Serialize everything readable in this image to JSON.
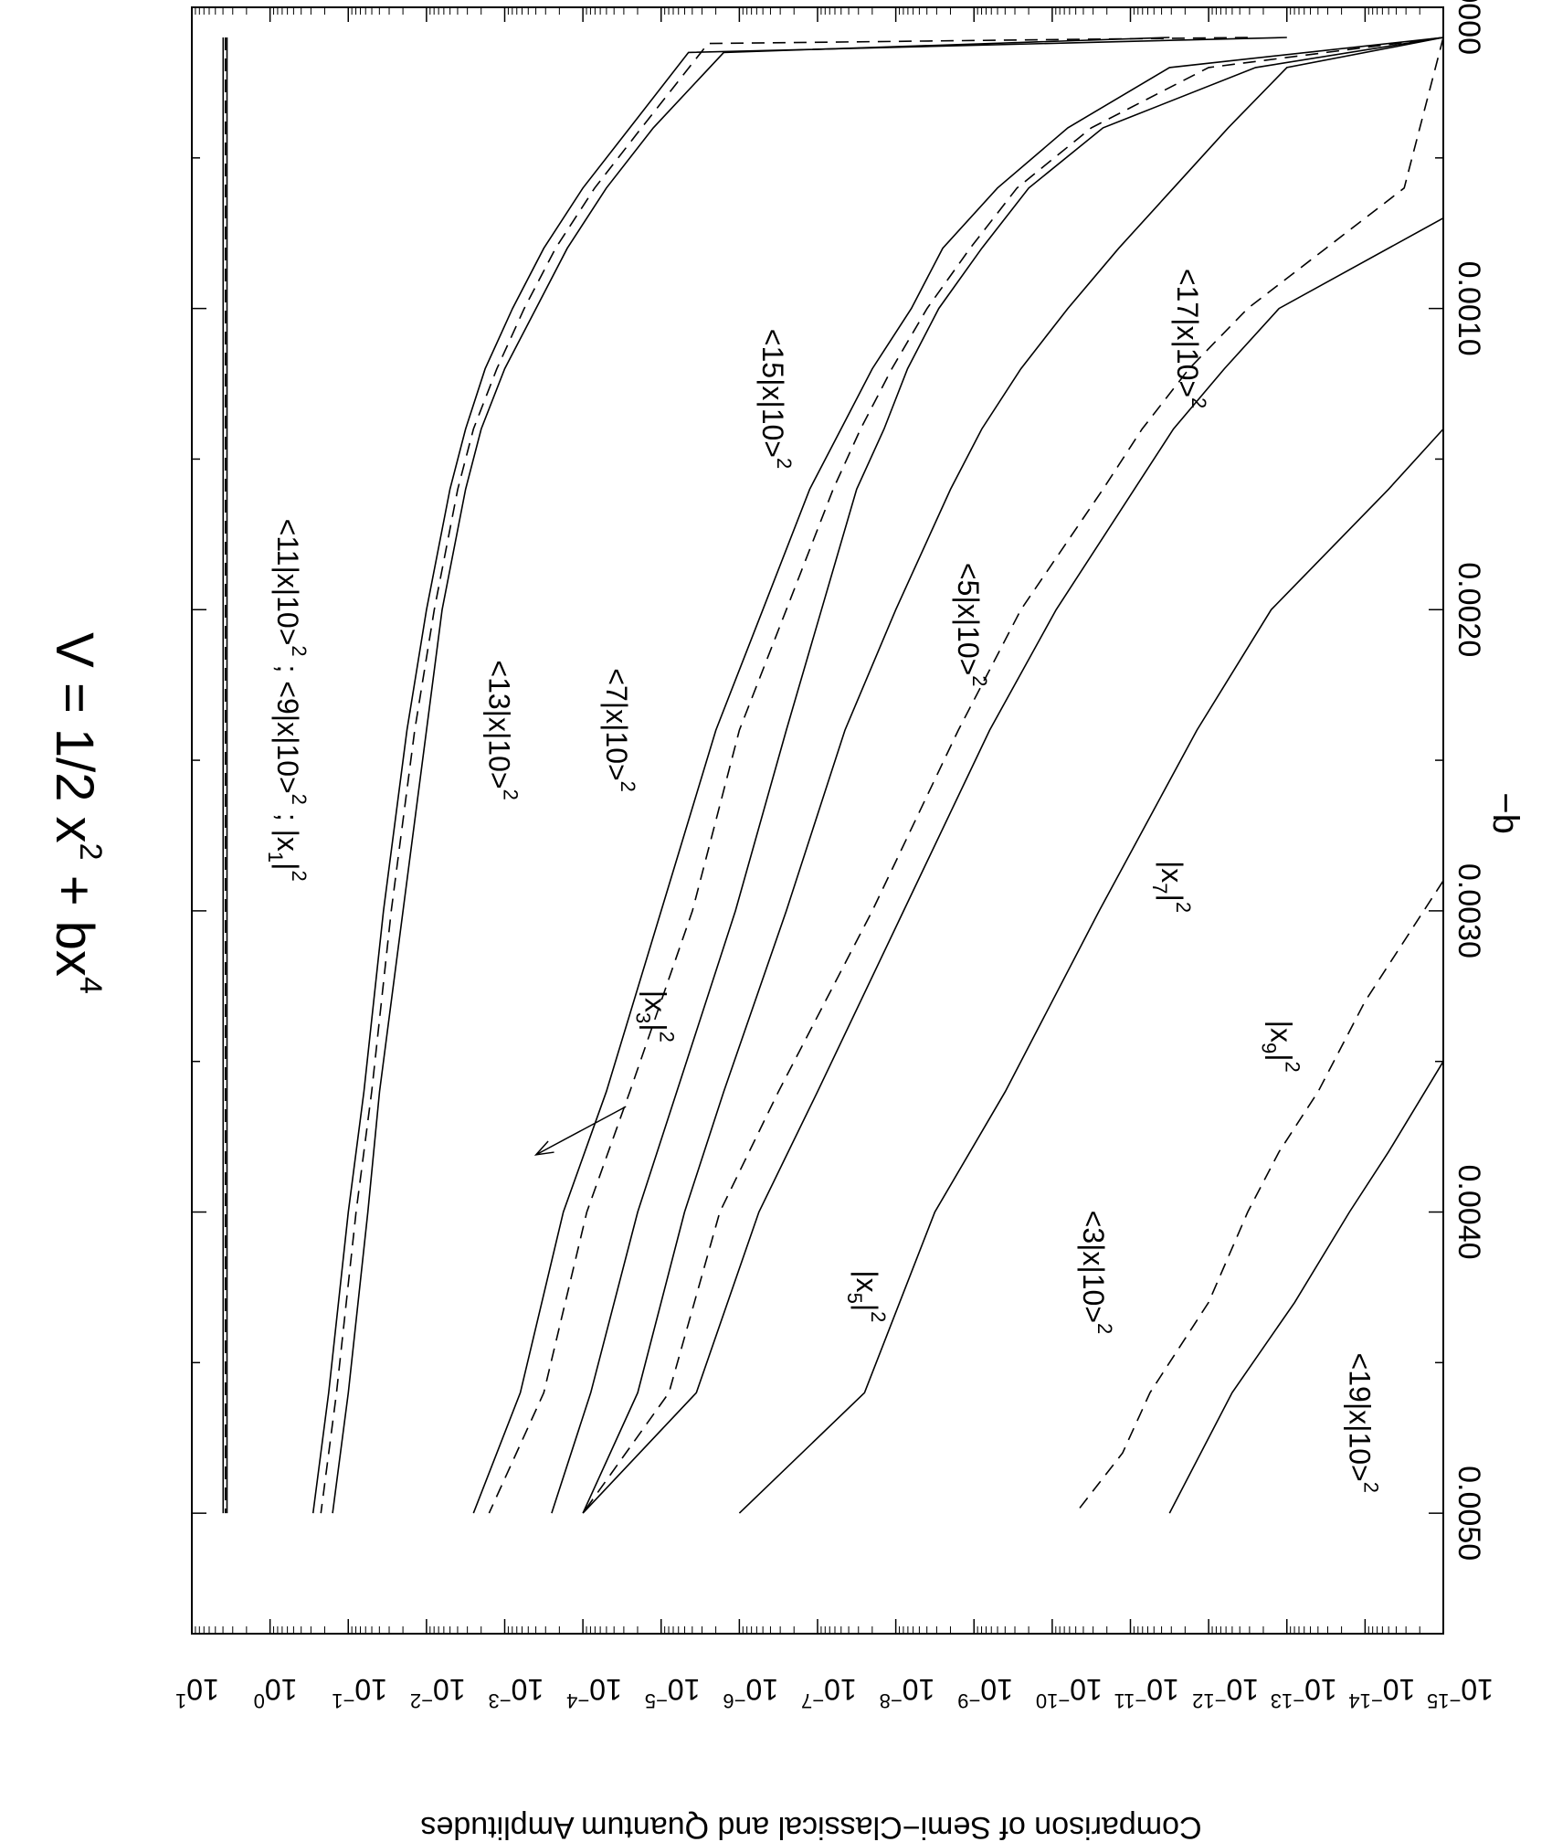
{
  "chart_data": {
    "type": "line",
    "title": "V = 1/2 x² + bx⁴",
    "title_parts": {
      "a": "V = 1/2 x",
      "b": "2",
      "c": " + bx",
      "d": "4"
    },
    "xlabel": "−b",
    "ylabel": "Comparison of Semi−Classical and Quantum Amplitudes",
    "xlim": [
      0.0,
      0.0054
    ],
    "ylim_log10": [
      -15,
      1
    ],
    "y_scale": "log",
    "orientation": "rotated 90 degrees clockwise (x axis runs along the right edge, y increases toward the left)",
    "grid": false,
    "x_ticks": [
      "0.0000",
      "0.0010",
      "0.0020",
      "0.0030",
      "0.0040",
      "0.0050"
    ],
    "x_tick_values": [
      0.0,
      0.001,
      0.002,
      0.003,
      0.004,
      0.005
    ],
    "y_tick_exponents": [
      "1",
      "0",
      "−1",
      "−2",
      "−3",
      "−4",
      "−5",
      "−6",
      "−7",
      "−8",
      "−9",
      "−10",
      "−11",
      "−12",
      "−13",
      "−14",
      "−15"
    ],
    "y_tick_values": [
      1,
      0,
      -1,
      -2,
      -3,
      -4,
      -5,
      -6,
      -7,
      -8,
      -9,
      -10,
      -11,
      -12,
      -13,
      -14,
      -15
    ],
    "series": [
      {
        "style": "solid",
        "x": [
          0.0001,
          0.005
        ],
        "log10_y": [
          0.55,
          0.55
        ]
      },
      {
        "style": "solid",
        "x": [
          0.0001,
          0.005
        ],
        "log10_y": [
          0.6,
          0.6
        ]
      },
      {
        "style": "dashed",
        "x": [
          0.0001,
          0.005
        ],
        "log10_y": [
          0.57,
          0.57
        ]
      },
      {
        "style": "solid",
        "x": [
          0.0001,
          0.00015,
          0.0004,
          0.0006,
          0.0008,
          0.001,
          0.0012,
          0.0014,
          0.0016,
          0.002,
          0.0024,
          0.003,
          0.0036,
          0.004,
          0.0046,
          0.005
        ],
        "log10_y": [
          -11.5,
          -5.8,
          -4.9,
          -4.3,
          -3.8,
          -3.4,
          -3.0,
          -2.7,
          -2.5,
          -2.2,
          -2.0,
          -1.7,
          -1.4,
          -1.25,
          -1.0,
          -0.8
        ]
      },
      {
        "style": "solid",
        "x": [
          0.0001,
          0.00015,
          0.0004,
          0.0006,
          0.0008,
          0.001,
          0.0012,
          0.0014,
          0.0016,
          0.002,
          0.0024,
          0.003,
          0.0036,
          0.004,
          0.0046,
          0.005
        ],
        "log10_y": [
          -13.0,
          -5.35,
          -4.6,
          -4.0,
          -3.5,
          -3.1,
          -2.75,
          -2.5,
          -2.3,
          -2.0,
          -1.75,
          -1.45,
          -1.2,
          -1.0,
          -0.75,
          -0.55
        ]
      },
      {
        "style": "dashed",
        "x": [
          0.0001,
          0.00012,
          0.0004,
          0.0006,
          0.0008,
          0.001,
          0.0012,
          0.0014,
          0.0016,
          0.002,
          0.0024,
          0.003,
          0.0036,
          0.004,
          0.0046,
          0.005
        ],
        "log10_y": [
          -12.5,
          -5.6,
          -4.75,
          -4.15,
          -3.65,
          -3.25,
          -2.9,
          -2.6,
          -2.4,
          -2.1,
          -1.85,
          -1.55,
          -1.3,
          -1.1,
          -0.85,
          -0.65
        ]
      },
      {
        "style": "solid",
        "x": [
          0.0001,
          0.0002,
          0.0004,
          0.0006,
          0.0008,
          0.001,
          0.0012,
          0.0014,
          0.0016,
          0.002,
          0.0024,
          0.003,
          0.0036,
          0.004,
          0.0046,
          0.005
        ],
        "log10_y": [
          -15.0,
          -12.6,
          -10.65,
          -9.7,
          -9.1,
          -8.55,
          -8.15,
          -7.85,
          -7.5,
          -7.05,
          -6.6,
          -5.95,
          -5.2,
          -4.7,
          -4.1,
          -3.6
        ]
      },
      {
        "style": "solid",
        "x": [
          0.0001,
          0.0002,
          0.0004,
          0.0006,
          0.0008,
          0.001,
          0.0012,
          0.0014,
          0.0016,
          0.002,
          0.0024,
          0.003,
          0.0036,
          0.004,
          0.0046,
          0.005
        ],
        "log10_y": [
          -15.0,
          -11.5,
          -10.2,
          -9.3,
          -8.6,
          -8.2,
          -7.7,
          -7.3,
          -6.9,
          -6.3,
          -5.7,
          -5.0,
          -4.3,
          -3.75,
          -3.2,
          -2.6
        ]
      },
      {
        "style": "dashed",
        "x": [
          0.0001,
          0.0002,
          0.0004,
          0.0006,
          0.0008,
          0.001,
          0.0012,
          0.0014,
          0.0016,
          0.002,
          0.0024,
          0.003,
          0.0036,
          0.004,
          0.0046,
          0.005
        ],
        "log10_y": [
          -15.0,
          -12.0,
          -10.5,
          -9.55,
          -8.95,
          -8.4,
          -7.95,
          -7.55,
          -7.2,
          -6.6,
          -6.0,
          -5.4,
          -4.6,
          -4.05,
          -3.5,
          -2.8
        ]
      },
      {
        "style": "solid",
        "x": [
          0.0001,
          0.0002,
          0.0004,
          0.0006,
          0.0008,
          0.001,
          0.0012,
          0.0014,
          0.0016,
          0.002,
          0.0024,
          0.003,
          0.0036,
          0.004,
          0.0046,
          0.005
        ],
        "log10_y": [
          -15.0,
          -13.0,
          -12.25,
          -11.55,
          -10.85,
          -10.2,
          -9.6,
          -9.1,
          -8.7,
          -8.0,
          -7.35,
          -6.6,
          -5.8,
          -5.3,
          -4.7,
          -4.0
        ]
      },
      {
        "style": "dashed",
        "x": [
          0.0001,
          0.0006,
          0.0008,
          0.001,
          0.0012,
          0.0014,
          0.0016,
          0.002,
          0.0024,
          0.003,
          0.0036,
          0.004,
          0.0046,
          0.005
        ],
        "log10_y": [
          -15.0,
          -14.5,
          -13.5,
          -12.5,
          -11.75,
          -11.15,
          -10.65,
          -9.6,
          -8.8,
          -7.7,
          -6.5,
          -5.75,
          -5.1,
          -4.0
        ]
      },
      {
        "style": "solid",
        "x": [
          0.0007,
          0.001,
          0.0012,
          0.0014,
          0.0016,
          0.002,
          0.0024,
          0.003,
          0.0036,
          0.004,
          0.0046,
          0.005
        ],
        "log10_y": [
          -15.0,
          -12.9,
          -12.2,
          -11.55,
          -11.05,
          -10.05,
          -9.2,
          -8.1,
          -7.0,
          -6.25,
          -5.45,
          -4.0
        ]
      },
      {
        "style": "solid",
        "x": [
          0.0014,
          0.0016,
          0.002,
          0.0024,
          0.003,
          0.0036,
          0.004,
          0.0046,
          0.005
        ],
        "log10_y": [
          -15.0,
          -14.3,
          -12.8,
          -11.85,
          -10.6,
          -9.4,
          -8.5,
          -7.6,
          -6.0
        ]
      },
      {
        "style": "dashed",
        "x": [
          0.0029,
          0.0033,
          0.0036,
          0.0038,
          0.004,
          0.0043,
          0.0046,
          0.0048,
          0.005
        ],
        "log10_y": [
          -15.0,
          -14.0,
          -13.4,
          -12.9,
          -12.5,
          -12.0,
          -11.25,
          -10.9,
          -10.3
        ]
      },
      {
        "style": "solid",
        "x": [
          0.0035,
          0.0038,
          0.004,
          0.0043,
          0.0046,
          0.005
        ],
        "log10_y": [
          -15.0,
          -14.3,
          -13.8,
          -13.1,
          -12.3,
          -11.5
        ]
      }
    ],
    "annotations": [
      {
        "label": "<11|x|10>",
        "sup": "2",
        "rest": " ; <9|x|10>",
        "sup2": "2",
        "rest2": " ; |x",
        "sub3": "1",
        "rest3": "|",
        "sup3": "2",
        "x": 0.0023,
        "log10_y": -0.1
      },
      {
        "label": "<13|x|10>",
        "sup": "2",
        "x": 0.0024,
        "log10_y": -2.8
      },
      {
        "label": "<7|x|10>",
        "sup": "2",
        "x": 0.0024,
        "log10_y": -4.3
      },
      {
        "label": "|x",
        "sub": "3",
        "label_end": "|",
        "sup": "2",
        "x": 0.00335,
        "log10_y": -4.8
      },
      {
        "label": "|x",
        "sub": "5",
        "label_end": "|",
        "sup": "2",
        "x": 0.00428,
        "log10_y": -7.5
      },
      {
        "label": "<15|x|10>",
        "sup": "2",
        "x": 0.0013,
        "log10_y": -6.3
      },
      {
        "label": "<5|x|10>",
        "sup": "2",
        "x": 0.00205,
        "log10_y": -8.8
      },
      {
        "label": "<3|x|10>",
        "sup": "2",
        "x": 0.0042,
        "log10_y": -10.4
      },
      {
        "label": "|x",
        "sub": "7",
        "label_end": "|",
        "sup": "2",
        "x": 0.00292,
        "log10_y": -11.4
      },
      {
        "label": "<17|x|10>",
        "sup": "2",
        "x": 0.0011,
        "log10_y": -11.6
      },
      {
        "label": "|x",
        "sub": "9",
        "label_end": "|",
        "sup": "2",
        "x": 0.00345,
        "log10_y": -12.8
      },
      {
        "label": "<19|x|10>",
        "sup": "2",
        "x": 0.0047,
        "log10_y": -13.8
      }
    ],
    "arrow": {
      "from": [
        0.00365,
        -4.55
      ],
      "to": [
        0.00381,
        -3.4
      ]
    }
  }
}
